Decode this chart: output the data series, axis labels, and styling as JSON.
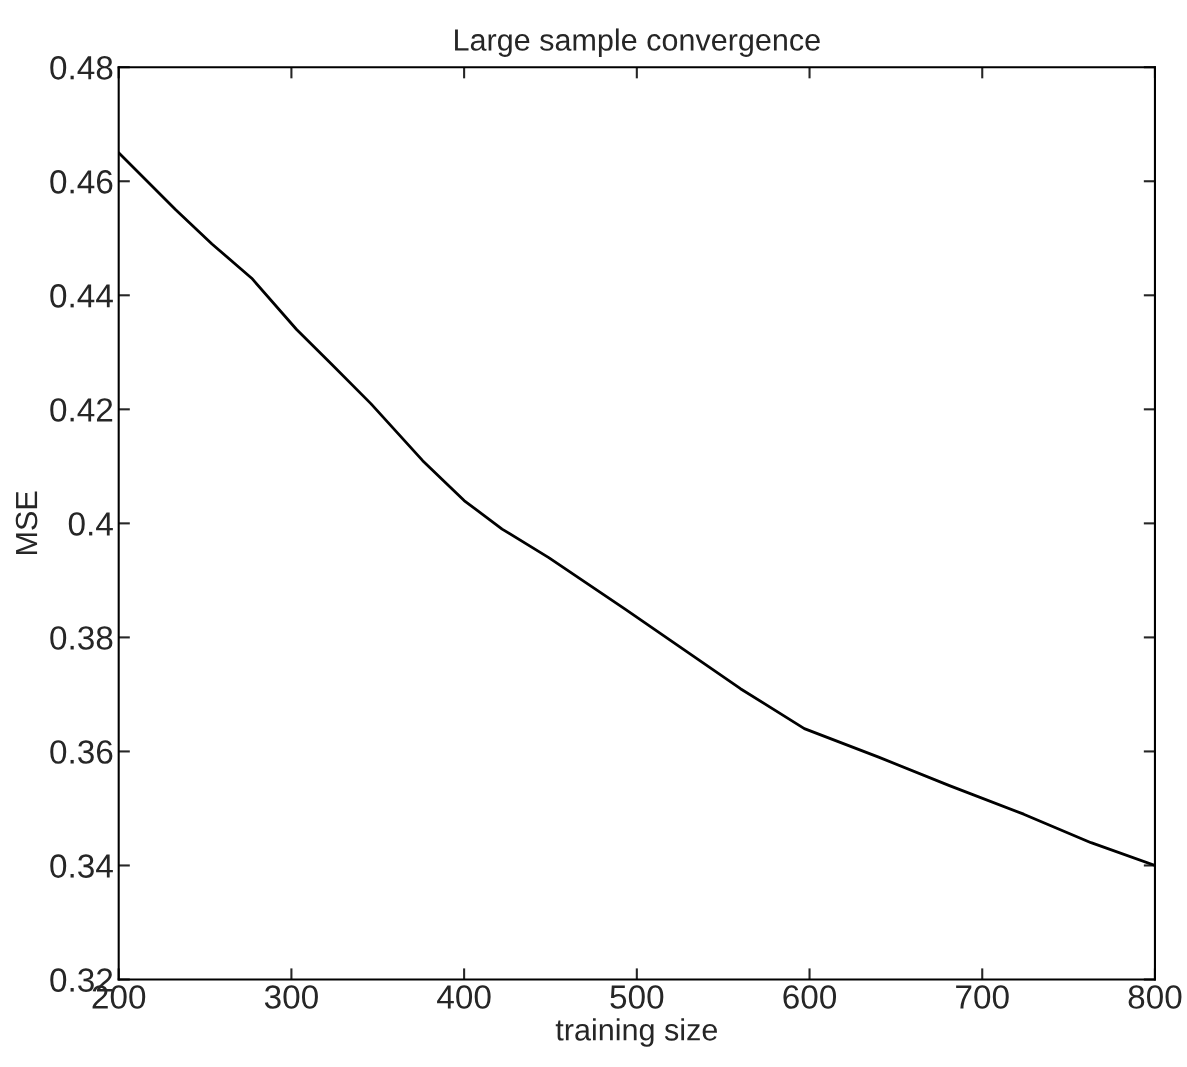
{
  "chart_data": {
    "type": "line",
    "title": "Large sample convergence",
    "xlabel": "training size",
    "ylabel": "MSE",
    "x": [
      200,
      233,
      254,
      277,
      303,
      323,
      346,
      376,
      400,
      422,
      449,
      493,
      560,
      597,
      640,
      681,
      724,
      763,
      800
    ],
    "series": [
      {
        "color": "#000000",
        "values": [
          0.465,
          0.455,
          0.449,
          0.443,
          0.434,
          0.428,
          0.421,
          0.411,
          0.404,
          0.399,
          0.394,
          0.385,
          0.371,
          0.364,
          0.359,
          0.354,
          0.349,
          0.344,
          0.34
        ]
      }
    ],
    "xlim": [
      200,
      800
    ],
    "ylim": [
      0.32,
      0.48
    ],
    "xticks": [
      200,
      300,
      400,
      500,
      600,
      700,
      800
    ],
    "yticks": [
      0.32,
      0.34,
      0.36,
      0.38,
      0.4,
      0.42,
      0.44,
      0.46,
      0.48
    ],
    "grid": false,
    "legend": false,
    "line_style": "solid",
    "marker": "none"
  }
}
